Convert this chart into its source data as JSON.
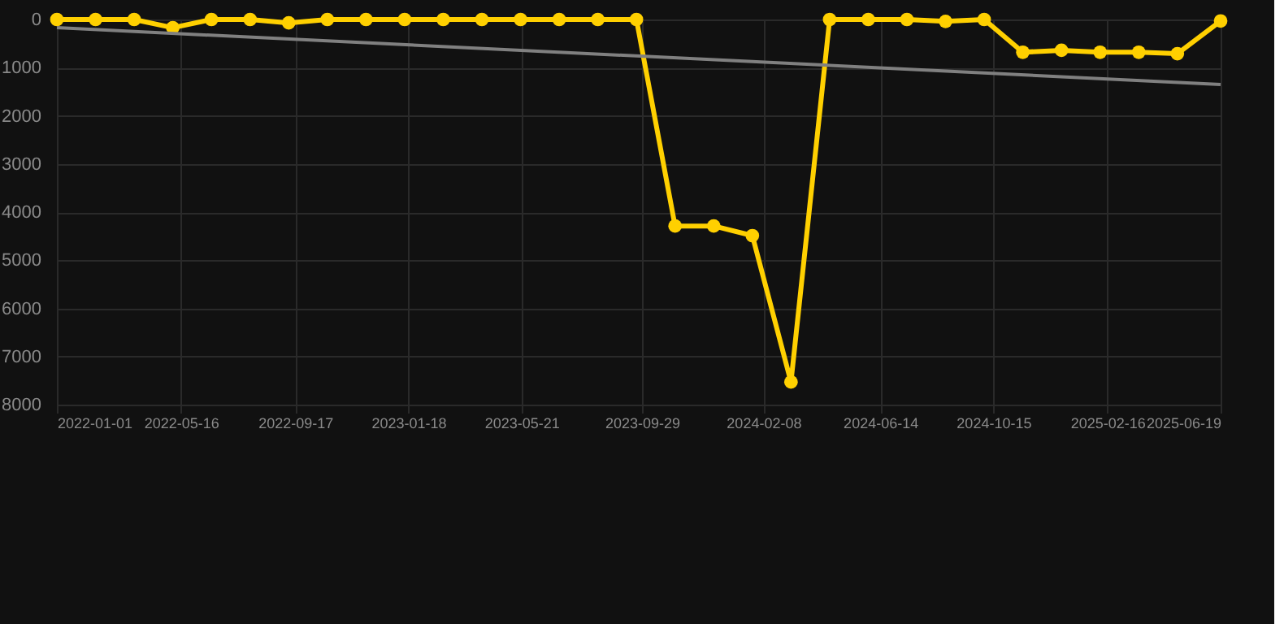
{
  "chart_data": {
    "type": "line",
    "x": [
      "2022-01-01",
      "2022-02-12",
      "2022-03-26",
      "2022-05-07",
      "2022-06-18",
      "2022-07-30",
      "2022-09-10",
      "2022-10-22",
      "2022-12-03",
      "2023-01-14",
      "2023-02-25",
      "2023-04-08",
      "2023-05-20",
      "2023-07-01",
      "2023-08-12",
      "2023-09-23",
      "2023-11-04",
      "2023-12-16",
      "2024-01-27",
      "2024-03-09",
      "2024-04-20",
      "2024-06-01",
      "2024-07-13",
      "2024-08-24",
      "2024-10-05",
      "2024-11-16",
      "2024-12-28",
      "2025-02-08",
      "2025-03-22",
      "2025-05-03",
      "2025-06-19"
    ],
    "series": [
      {
        "color": "#ffd000",
        "marker": "circle",
        "values": [
          0,
          0,
          0,
          170,
          0,
          0,
          70,
          0,
          0,
          0,
          0,
          0,
          0,
          0,
          0,
          0,
          4290,
          4290,
          4490,
          7530,
          0,
          0,
          0,
          40,
          0,
          680,
          640,
          680,
          680,
          710,
          30
        ]
      },
      {
        "type": "line",
        "color": "#808080",
        "marker": "none",
        "x": [
          "2022-01-01",
          "2025-06-19"
        ],
        "values": [
          170,
          1350
        ]
      }
    ],
    "ylim": [
      8000,
      0
    ],
    "yticks": [
      0,
      1000,
      2000,
      3000,
      4000,
      5000,
      6000,
      7000,
      8000
    ],
    "xlim": [
      "2022-01-01",
      "2025-06-19"
    ],
    "xticks": [
      "2022-01-01",
      "2022-05-16",
      "2022-09-17",
      "2023-01-18",
      "2023-05-21",
      "2023-09-29",
      "2024-02-08",
      "2024-06-14",
      "2024-10-15",
      "2025-02-16",
      "2025-06-19"
    ],
    "grid": true
  }
}
